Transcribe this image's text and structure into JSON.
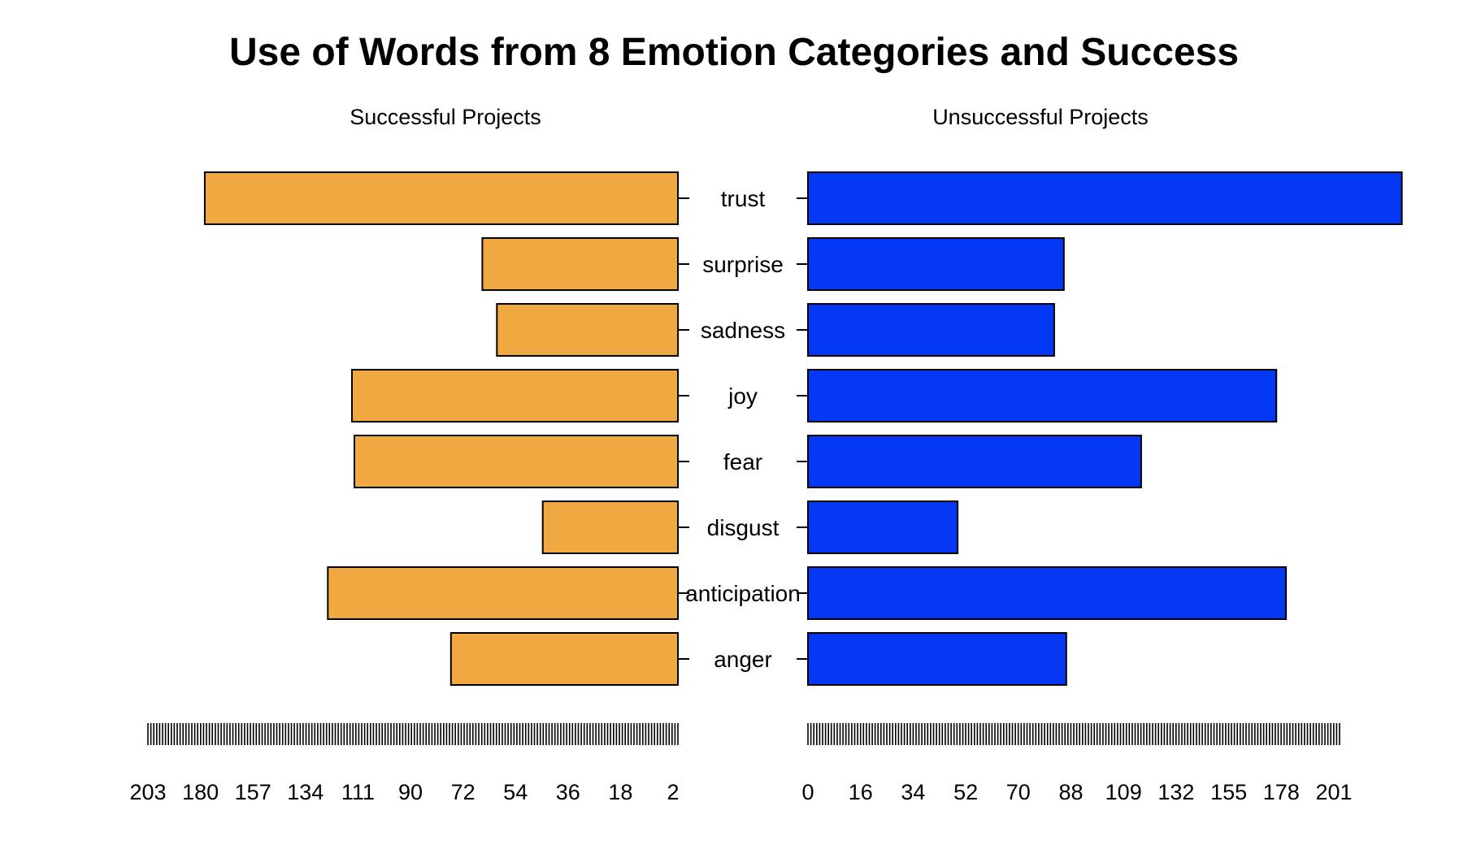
{
  "chart_data": {
    "type": "bar",
    "title": "Use of Words from 8 Emotion Categories and Success",
    "categories": [
      "trust",
      "surprise",
      "sadness",
      "joy",
      "fear",
      "disgust",
      "anticipation",
      "anger"
    ],
    "colors": {
      "successful": "#F0A840",
      "unsuccessful": "#0538F5"
    },
    "panels": [
      {
        "title": "Successful Projects",
        "series_key": "successful",
        "direction": "leftward",
        "values": [
          196,
          81,
          75,
          135,
          134,
          56,
          145,
          94
        ],
        "tick_labels": [
          "203",
          "180",
          "157",
          "134",
          "111",
          "90",
          "72",
          "54",
          "36",
          "18",
          "2"
        ],
        "xlim": [
          0,
          220
        ]
      },
      {
        "title": "Unsuccessful Projects",
        "series_key": "unsuccessful",
        "direction": "rightward",
        "values": [
          246,
          106,
          102,
          194,
          138,
          62,
          198,
          107
        ],
        "tick_labels": [
          "0",
          "16",
          "34",
          "52",
          "70",
          "88",
          "109",
          "132",
          "155",
          "178",
          "201"
        ],
        "xlim": [
          0,
          220
        ]
      }
    ]
  }
}
